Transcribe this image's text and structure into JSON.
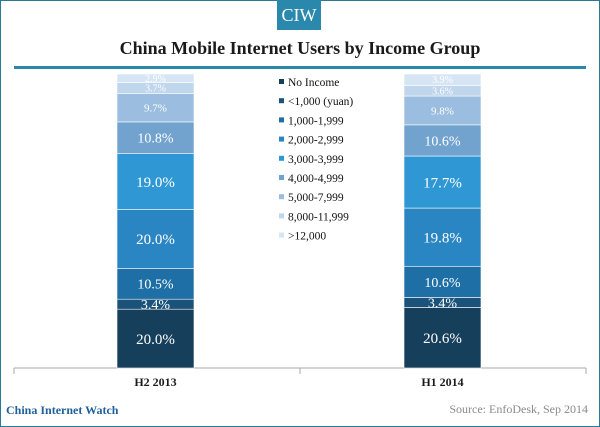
{
  "brand": "CIW",
  "footer": {
    "brand": "China Internet Watch",
    "source": "Source: EnfoDesk, Sep 2014"
  },
  "chart_data": {
    "type": "bar",
    "stacked": true,
    "title": "China Mobile Internet Users by Income Group",
    "xlabel": "",
    "ylabel": "",
    "ylim": [
      0,
      100
    ],
    "categories": [
      "H2 2013",
      "H1 2014"
    ],
    "series": [
      {
        "name": "No Income",
        "values": [
          20.0,
          20.6
        ],
        "labels": [
          "20.0%",
          "20.6%"
        ],
        "color": "#163f5c"
      },
      {
        "name": "<1,000  (yuan)",
        "values": [
          3.4,
          3.4
        ],
        "labels": [
          "3.4%",
          "3.4%"
        ],
        "color": "#1a527a"
      },
      {
        "name": "1,000-1,999",
        "values": [
          10.5,
          10.6
        ],
        "labels": [
          "10.5%",
          "10.6%"
        ],
        "color": "#1e6fa6"
      },
      {
        "name": "2,000-2,999",
        "values": [
          20.0,
          19.8
        ],
        "labels": [
          "20.0%",
          "19.8%"
        ],
        "color": "#2a86c2"
      },
      {
        "name": "3,000-3,999",
        "values": [
          19.0,
          17.7
        ],
        "labels": [
          "19.0%",
          "17.7%"
        ],
        "color": "#2f98d4"
      },
      {
        "name": "4,000-4,999",
        "values": [
          10.8,
          10.6
        ],
        "labels": [
          "10.8%",
          "10.6%"
        ],
        "color": "#72a3cf"
      },
      {
        "name": "5,000-7,999",
        "values": [
          9.7,
          9.8
        ],
        "labels": [
          "9.7%",
          "9.8%"
        ],
        "color": "#9bbde0"
      },
      {
        "name": "8,000-11,999",
        "values": [
          3.7,
          3.6
        ],
        "labels": [
          "3.7%",
          "3.6%"
        ],
        "color": "#bfd6ed"
      },
      {
        "name": ">12,000",
        "values": [
          2.9,
          3.9
        ],
        "labels": [
          "2.9%",
          "3.9%"
        ],
        "color": "#d6e5f3"
      }
    ],
    "legend": "center",
    "grid": false
  }
}
